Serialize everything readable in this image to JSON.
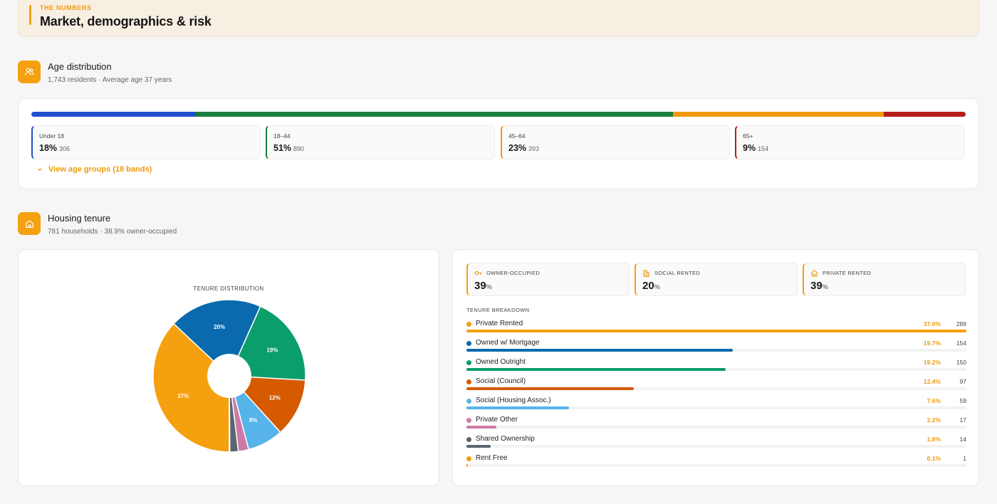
{
  "header": {
    "kicker": "THE NUMBERS",
    "title": "Market, demographics & risk"
  },
  "age": {
    "title": "Age distribution",
    "subtitle": "1,743 residents · Average age 37 years",
    "icon": "people-icon",
    "groups": [
      {
        "label": "Under 18",
        "pct": "18%",
        "count": "306",
        "share": 17.6,
        "color": "#1e4fcf"
      },
      {
        "label": "18–44",
        "pct": "51%",
        "count": "890",
        "share": 51.1,
        "color": "#1b7e3c"
      },
      {
        "label": "45–64",
        "pct": "23%",
        "count": "393",
        "share": 22.5,
        "color": "#f09a0a"
      },
      {
        "label": "65+",
        "pct": "9%",
        "count": "154",
        "share": 8.8,
        "color": "#b71c1c"
      }
    ],
    "toggle_label": "View age groups (18 bands)"
  },
  "housing": {
    "title": "Housing tenure",
    "subtitle": "781 households · 38.9% owner-occupied",
    "icon": "home-icon",
    "stats": [
      {
        "label": "OWNER-OCCUPIED",
        "value": "39",
        "unit": "%",
        "icon": "key-icon"
      },
      {
        "label": "SOCIAL RENTED",
        "value": "20",
        "unit": "%",
        "icon": "building-icon"
      },
      {
        "label": "PRIVATE RENTED",
        "value": "39",
        "unit": "%",
        "icon": "house-rent-icon"
      }
    ],
    "breakdown_title": "TENURE BREAKDOWN",
    "breakdown": [
      {
        "name": "Private Rented",
        "pct": "37.0%",
        "count": "289",
        "color": "#f5a00f"
      },
      {
        "name": "Owned w/ Mortgage",
        "pct": "19.7%",
        "count": "154",
        "color": "#0a6aad"
      },
      {
        "name": "Owned Outright",
        "pct": "19.2%",
        "count": "150",
        "color": "#0b9e6b"
      },
      {
        "name": "Social (Council)",
        "pct": "12.4%",
        "count": "97",
        "color": "#d55a00"
      },
      {
        "name": "Social (Housing Assoc.)",
        "pct": "7.6%",
        "count": "59",
        "color": "#56b4e9"
      },
      {
        "name": "Private Other",
        "pct": "2.2%",
        "count": "17",
        "color": "#cc79a7"
      },
      {
        "name": "Shared Ownership",
        "pct": "1.8%",
        "count": "14",
        "color": "#5a6472"
      },
      {
        "name": "Rent Free",
        "pct": "0.1%",
        "count": "1",
        "color": "#f5a00f"
      }
    ]
  },
  "chart_data": {
    "type": "pie",
    "title": "TENURE DISTRIBUTION",
    "categories": [
      "Private Rented",
      "Owned w/ Mortgage",
      "Owned Outright",
      "Social (Council)",
      "Social (Housing Assoc.)",
      "Private Other",
      "Shared Ownership",
      "Rent Free"
    ],
    "values": [
      37.0,
      19.7,
      19.2,
      12.4,
      7.6,
      2.2,
      1.8,
      0.1
    ],
    "labels": [
      "37%",
      "20%",
      "19%",
      "12%",
      "8%",
      "",
      "",
      ""
    ],
    "colors": [
      "#f5a00f",
      "#0a6aad",
      "#0b9e6b",
      "#d55a00",
      "#56b4e9",
      "#cc79a7",
      "#5a6472",
      "#f5a00f"
    ],
    "donut_hole": true,
    "legend": "none"
  }
}
